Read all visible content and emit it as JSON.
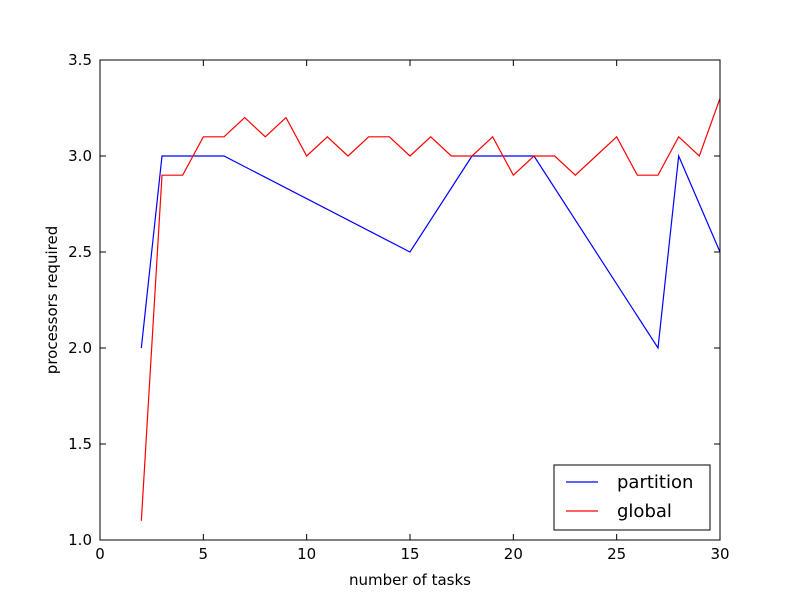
{
  "chart_data": {
    "type": "line",
    "title": "",
    "xlabel": "number of tasks",
    "ylabel": "processors required",
    "xlim": [
      0,
      30
    ],
    "ylim": [
      1.0,
      3.5
    ],
    "xticks": [
      0,
      5,
      10,
      15,
      20,
      25,
      30
    ],
    "xtick_labels": [
      "0",
      "5",
      "10",
      "15",
      "20",
      "25",
      "30"
    ],
    "yticks": [
      1.0,
      1.5,
      2.0,
      2.5,
      3.0,
      3.5
    ],
    "ytick_labels": [
      "1.0",
      "1.5",
      "2.0",
      "2.5",
      "3.0",
      "3.5"
    ],
    "grid": false,
    "legend_position": "lower-right",
    "series": [
      {
        "name": "partition",
        "color": "#0000ff",
        "x": [
          2,
          3,
          6,
          15,
          18,
          21,
          27,
          28,
          30
        ],
        "y": [
          2.0,
          3.0,
          3.0,
          2.5,
          3.0,
          3.0,
          2.0,
          3.0,
          2.5
        ]
      },
      {
        "name": "global",
        "color": "#ff0000",
        "x": [
          2,
          3,
          4,
          5,
          6,
          7,
          8,
          9,
          10,
          11,
          12,
          13,
          14,
          15,
          16,
          17,
          18,
          19,
          20,
          21,
          22,
          23,
          24,
          25,
          26,
          27,
          28,
          29,
          30
        ],
        "y": [
          1.1,
          2.9,
          2.9,
          3.1,
          3.1,
          3.2,
          3.1,
          3.2,
          3.0,
          3.1,
          3.0,
          3.1,
          3.1,
          3.0,
          3.1,
          3.0,
          3.0,
          3.1,
          2.9,
          3.0,
          3.0,
          2.9,
          3.0,
          3.1,
          2.9,
          2.9,
          3.1,
          3.0,
          3.3
        ]
      }
    ]
  }
}
